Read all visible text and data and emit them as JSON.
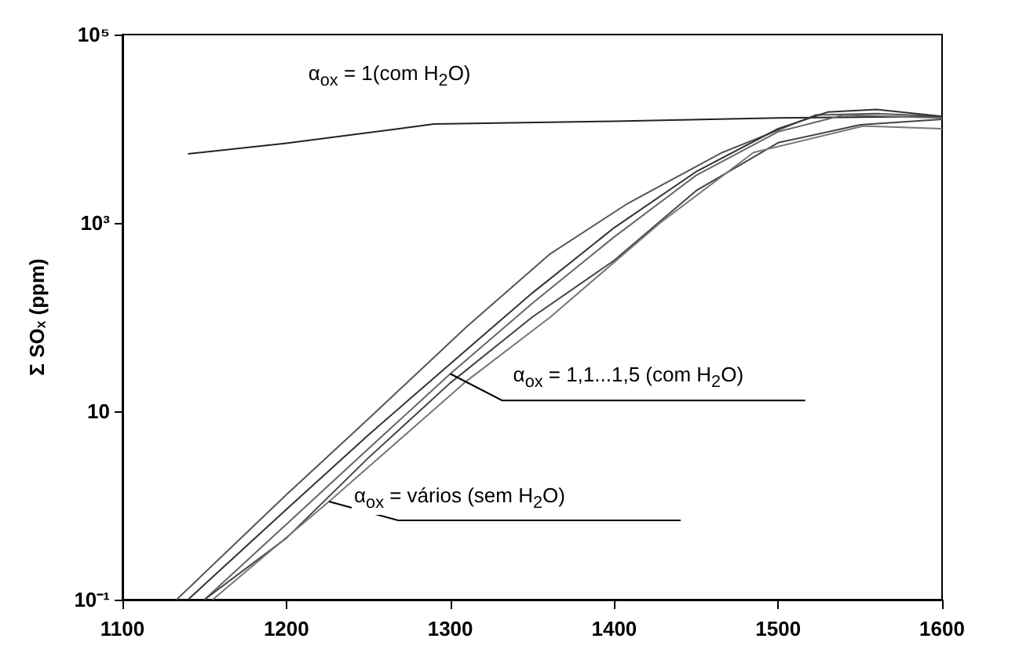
{
  "chart_data": {
    "type": "line",
    "ylabel": "Σ SOₓ (ppm)",
    "log": "y",
    "grid": false,
    "marker": "none",
    "line_style": "solid",
    "xlim": [
      1100,
      1600
    ],
    "xticks": [
      1100,
      1200,
      1300,
      1400,
      1500,
      1600
    ],
    "ylim": [
      0.1,
      100000
    ],
    "yticks": [
      {
        "value": 0.1,
        "label": "10⁻¹"
      },
      10,
      {
        "value": 1000,
        "label": "10³"
      },
      {
        "value": 100000,
        "label": "10⁵"
      }
    ],
    "series": [
      {
        "color": "#222222",
        "x": [
          1140,
          1200,
          1290,
          1400,
          1500,
          1600
        ],
        "values": [
          5400,
          7000,
          11200,
          12000,
          13000,
          13500
        ]
      },
      {
        "color": "#555555",
        "x": [
          1133,
          1200,
          1250,
          1310,
          1361,
          1408,
          1466,
          1523,
          1560,
          1600
        ],
        "values": [
          0.1,
          1.3,
          8.3,
          79,
          470,
          1600,
          5600,
          14000,
          14500,
          13500
        ]
      },
      {
        "color": "#333333",
        "x": [
          1140,
          1200,
          1250,
          1300,
          1350,
          1400,
          1450,
          1500,
          1530,
          1560,
          1600
        ],
        "values": [
          0.1,
          0.91,
          5.6,
          32,
          180,
          890,
          3500,
          10000,
          15000,
          16000,
          13500
        ]
      },
      {
        "color": "#666666",
        "x": [
          1150,
          1200,
          1250,
          1300,
          1350,
          1400,
          1450,
          1500,
          1540,
          1600
        ],
        "values": [
          0.1,
          0.63,
          4,
          25,
          140,
          710,
          3200,
          9300,
          14000,
          13000
        ]
      },
      {
        "color": "#444444",
        "x": [
          1150,
          1200,
          1250,
          1300,
          1350,
          1400,
          1450,
          1500,
          1550,
          1600
        ],
        "values": [
          0.1,
          0.45,
          3.2,
          20,
          100,
          400,
          2200,
          7100,
          11000,
          12600
        ]
      },
      {
        "color": "#777777",
        "x": [
          1155,
          1226,
          1310,
          1361,
          1428,
          1485,
          1552,
          1600
        ],
        "values": [
          0.1,
          1.1,
          21,
          100,
          1000,
          5600,
          10700,
          10000
        ]
      }
    ],
    "annotations": [
      {
        "text": "α$_{ox}$ = 1(com H$_{2}$O)",
        "x": 1200,
        "y": 7000
      },
      {
        "text": "α$_{ox}$ = 1,1...1,5 (com H$_{2}$O)",
        "x": 1300,
        "y": 25
      },
      {
        "text": "α$_{ox}$ = vários (sem H$_{2}$O)",
        "x": 1226,
        "y": 1.1
      }
    ]
  }
}
